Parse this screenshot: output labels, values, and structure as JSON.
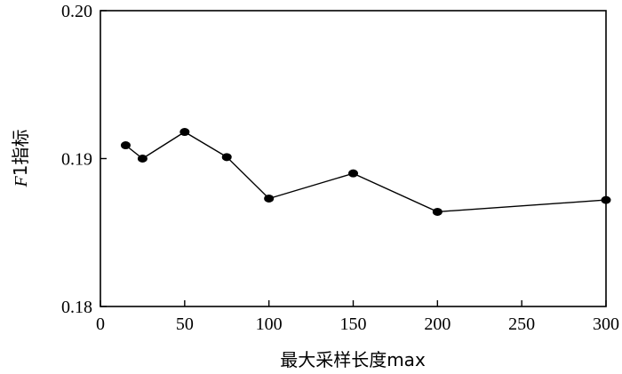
{
  "chart_data": {
    "type": "line",
    "xlabel": "最大采样长度max",
    "ylabel": {
      "italic": "F",
      "rest": "1指标"
    },
    "xlim": [
      0,
      300
    ],
    "ylim": [
      0.18,
      0.2
    ],
    "x_ticks": [
      0,
      50,
      100,
      150,
      200,
      250,
      300
    ],
    "x_tick_labels": [
      "0",
      "50",
      "100",
      "150",
      "200",
      "250",
      "300"
    ],
    "y_ticks": [
      0.18,
      0.19,
      0.2
    ],
    "y_tick_labels": [
      "0.18",
      "0.19",
      "0.20"
    ],
    "grid": false,
    "series": [
      {
        "x": [
          15,
          25,
          50,
          75,
          100,
          150,
          200,
          300
        ],
        "y": [
          0.1909,
          0.19,
          0.1918,
          0.1901,
          0.1873,
          0.189,
          0.1864,
          0.1872
        ],
        "color": "#000000",
        "marker": "circle"
      }
    ]
  }
}
